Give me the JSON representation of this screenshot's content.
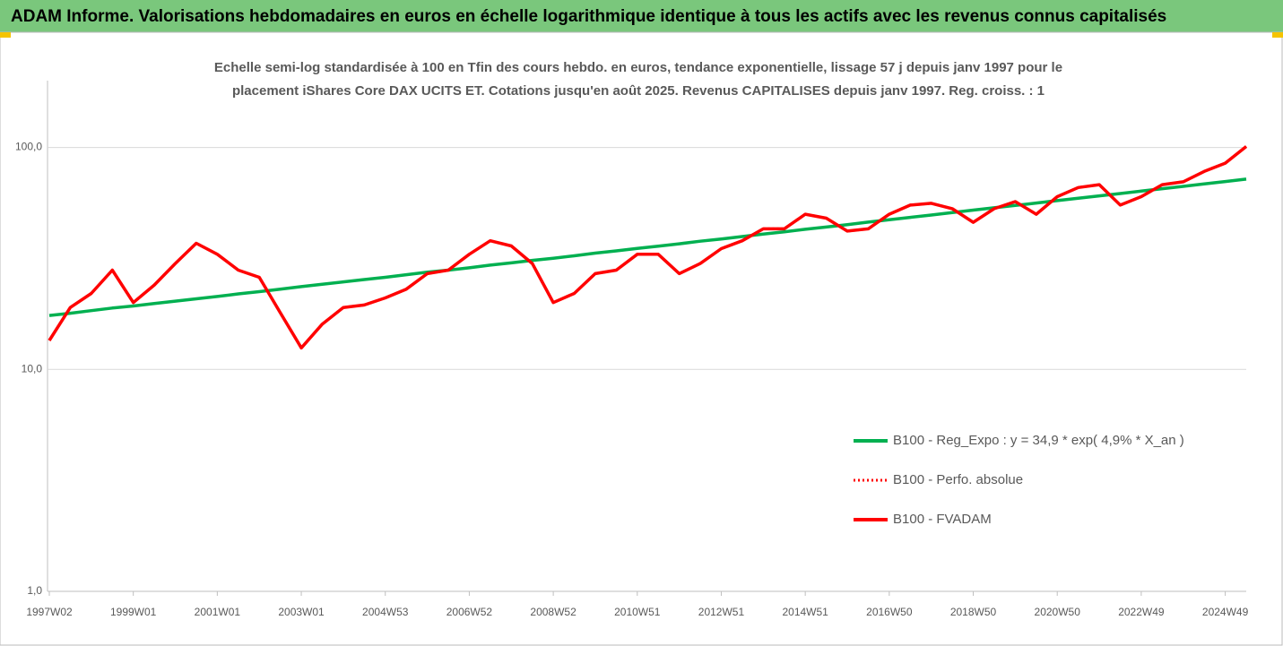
{
  "chart_data": {
    "type": "line",
    "title": "ADAM Informe. Valorisations hebdomadaires en euros en échelle logarithmique identique à tous les actifs avec les revenus connus capitalisés",
    "subtitle": [
      "Echelle semi-log standardisée à 100 en Tfin des cours hebdo. en euros, tendance exponentielle, lissage 57 j depuis janv 1997 pour le",
      "placement iShares Core DAX UCITS ET. Cotations jusqu'en août 2025. Revenus CAPITALISES depuis janv 1997. Reg. croiss. : 1"
    ],
    "categories": [
      "1997W02",
      null,
      null,
      null,
      "1999W01",
      null,
      null,
      null,
      "2001W01",
      null,
      null,
      null,
      "2003W01",
      null,
      null,
      null,
      "2004W53",
      null,
      null,
      null,
      "2006W52",
      null,
      null,
      null,
      "2008W52",
      null,
      null,
      null,
      "2010W51",
      null,
      null,
      null,
      "2012W51",
      null,
      null,
      null,
      "2014W51",
      null,
      null,
      null,
      "2016W50",
      null,
      null,
      null,
      "2018W50",
      null,
      null,
      null,
      "2020W50",
      null,
      null,
      null,
      "2022W49",
      null,
      null,
      null,
      "2024W49",
      null
    ],
    "series": [
      {
        "name": "B100 - Reg_Expo : y = 34,9 * exp( 4,9% *  X_an )",
        "color": "#00b050",
        "style": "solid",
        "values": [
          17.5,
          17.9,
          18.4,
          18.9,
          19.3,
          19.8,
          20.3,
          20.8,
          21.3,
          21.9,
          22.4,
          23.0,
          23.6,
          24.2,
          24.8,
          25.4,
          26.0,
          26.7,
          27.4,
          28.0,
          28.7,
          29.5,
          30.2,
          31.0,
          31.7,
          32.5,
          33.4,
          34.2,
          35.1,
          35.9,
          36.8,
          37.8,
          38.7,
          39.7,
          40.7,
          41.7,
          42.8,
          43.8,
          44.9,
          46.1,
          47.2,
          48.4,
          49.6,
          50.9,
          52.2,
          53.5,
          54.8,
          56.2,
          57.6,
          59.0,
          60.5,
          62.0,
          63.6,
          65.2,
          66.8,
          68.5,
          70.2,
          72.0
        ]
      },
      {
        "name": "B100 - Perfo. absolue",
        "color": "#ff0000",
        "style": "dotted",
        "values": [
          13.5,
          19,
          22,
          28,
          20,
          24,
          30,
          37,
          33,
          28,
          26,
          18,
          12.5,
          16,
          19,
          19.5,
          21,
          23,
          27,
          28,
          33,
          38,
          36,
          30,
          20,
          22,
          27,
          28,
          33,
          33,
          27,
          30,
          35,
          38,
          43,
          43,
          50,
          48,
          42,
          43,
          50,
          55,
          56,
          53,
          46,
          53,
          57,
          50,
          60,
          66,
          68,
          55,
          60,
          68,
          70,
          78,
          85,
          101
        ]
      },
      {
        "name": "B100 - FVADAM",
        "color": "#ff0000",
        "style": "solid",
        "values": [
          13.5,
          19,
          22,
          28,
          20,
          24,
          30,
          37,
          33,
          28,
          26,
          18,
          12.5,
          16,
          19,
          19.5,
          21,
          23,
          27,
          28,
          33,
          38,
          36,
          30,
          20,
          22,
          27,
          28,
          33,
          33,
          27,
          30,
          35,
          38,
          43,
          43,
          50,
          48,
          42,
          43,
          50,
          55,
          56,
          53,
          46,
          53,
          57,
          50,
          60,
          66,
          68,
          55,
          60,
          68,
          70,
          78,
          85,
          101
        ]
      }
    ],
    "ylim": [
      1,
      200
    ],
    "log_y": true,
    "yticks": [
      {
        "value": 1,
        "label": "1,0"
      },
      {
        "value": 10,
        "label": "10,0"
      },
      {
        "value": 100,
        "label": "100,0"
      }
    ],
    "grid": true,
    "legend": "right"
  }
}
